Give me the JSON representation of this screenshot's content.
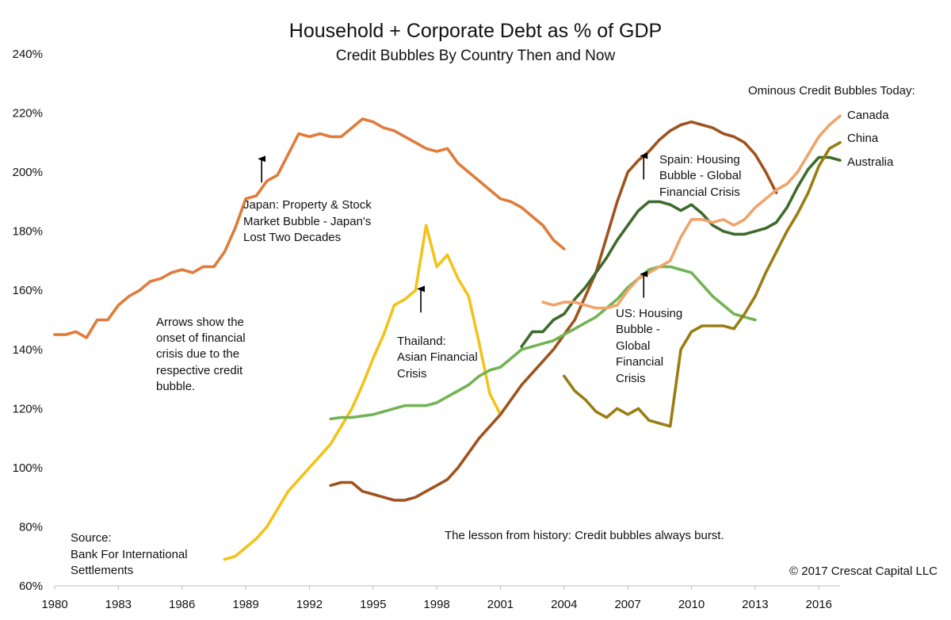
{
  "chart_data": {
    "type": "line",
    "title": "Household + Corporate Debt as % of GDP",
    "subtitle": "Credit Bubbles By Country Then and Now",
    "xlabel": "",
    "ylabel": "",
    "xlim": [
      1980,
      2017
    ],
    "ylim": [
      60,
      240
    ],
    "x_ticks": [
      "1980",
      "1983",
      "1986",
      "1989",
      "1992",
      "1995",
      "1998",
      "2001",
      "2004",
      "2007",
      "2010",
      "2013",
      "2016"
    ],
    "y_ticks": [
      "60%",
      "80%",
      "100%",
      "120%",
      "140%",
      "160%",
      "180%",
      "200%",
      "220%",
      "240%"
    ],
    "x_tick_values": [
      1980,
      1983,
      1986,
      1989,
      1992,
      1995,
      1998,
      2001,
      2004,
      2007,
      2010,
      2013,
      2016
    ],
    "y_tick_values": [
      60,
      80,
      100,
      120,
      140,
      160,
      180,
      200,
      220,
      240
    ],
    "grid": false,
    "series": [
      {
        "name": "Japan",
        "color": "#e07b39",
        "x": [
          1980,
          1980.5,
          1981,
          1981.5,
          1982,
          1982.5,
          1983,
          1983.5,
          1984,
          1984.5,
          1985,
          1985.5,
          1986,
          1986.5,
          1987,
          1987.5,
          1988,
          1988.5,
          1989,
          1989.5,
          1990,
          1990.5,
          1991,
          1991.5,
          1992,
          1992.5,
          1993,
          1993.5,
          1994,
          1994.5,
          1995,
          1995.5,
          1996,
          1996.5,
          1997,
          1997.5,
          1998,
          1998.5,
          1999,
          1999.5,
          2000,
          2000.5,
          2001,
          2001.5,
          2002,
          2002.5,
          2003,
          2003.5,
          2004
        ],
        "values": [
          145,
          145,
          146,
          144,
          150,
          150,
          155,
          158,
          160,
          163,
          164,
          166,
          167,
          166,
          168,
          168,
          173,
          181,
          191,
          192,
          197,
          199,
          206,
          213,
          212,
          213,
          212,
          212,
          215,
          218,
          217,
          215,
          214,
          212,
          210,
          208,
          207,
          208,
          203,
          200,
          197,
          194,
          191,
          190,
          188,
          185,
          182,
          177,
          174
        ]
      },
      {
        "name": "Thailand",
        "color": "#f2c318",
        "x": [
          1988,
          1988.5,
          1989,
          1989.5,
          1990,
          1990.5,
          1991,
          1991.5,
          1992,
          1992.5,
          1993,
          1993.5,
          1994,
          1994.5,
          1995,
          1995.5,
          1996,
          1996.5,
          1997,
          1997.5,
          1998,
          1998.5,
          1999,
          1999.5,
          2000,
          2000.5,
          2001
        ],
        "values": [
          69,
          70,
          73,
          76,
          80,
          86,
          92,
          96,
          100,
          104,
          108,
          114,
          120,
          128,
          137,
          145,
          155,
          157,
          160,
          182,
          168,
          172,
          164,
          158,
          142,
          125,
          118
        ]
      },
      {
        "name": "Spain",
        "color": "#a0521d",
        "x": [
          1993,
          1993.5,
          1994,
          1994.5,
          1995,
          1995.5,
          1996,
          1996.5,
          1997,
          1997.5,
          1998,
          1998.5,
          1999,
          1999.5,
          2000,
          2000.5,
          2001,
          2001.5,
          2002,
          2002.5,
          2003,
          2003.5,
          2004,
          2004.5,
          2005,
          2005.5,
          2006,
          2006.5,
          2007,
          2007.5,
          2008,
          2008.5,
          2009,
          2009.5,
          2010,
          2010.5,
          2011,
          2011.5,
          2012,
          2012.5,
          2013,
          2013.5,
          2014
        ],
        "values": [
          94,
          95,
          95,
          92,
          91,
          90,
          89,
          89,
          90,
          92,
          94,
          96,
          100,
          105,
          110,
          114,
          118,
          123,
          128,
          132,
          136,
          140,
          145,
          150,
          158,
          166,
          178,
          190,
          200,
          204,
          207,
          211,
          214,
          216,
          217,
          216,
          215,
          213,
          212,
          210,
          206,
          200,
          193
        ]
      },
      {
        "name": "US",
        "color": "#72b354",
        "x": [
          1993,
          1993.5,
          1994,
          1994.5,
          1995,
          1995.5,
          1996,
          1996.5,
          1997,
          1997.5,
          1998,
          1998.5,
          1999,
          1999.5,
          2000,
          2000.5,
          2001,
          2001.5,
          2002,
          2002.5,
          2003,
          2003.5,
          2004,
          2004.5,
          2005,
          2005.5,
          2006,
          2006.5,
          2007,
          2007.5,
          2008,
          2008.5,
          2009,
          2009.5,
          2010,
          2010.5,
          2011,
          2011.5,
          2012,
          2012.5,
          2013
        ],
        "values": [
          116.5,
          117,
          117,
          117.5,
          118,
          119,
          120,
          121,
          121,
          121,
          122,
          124,
          126,
          128,
          131,
          133,
          134,
          137,
          140,
          141,
          142,
          143,
          145,
          147,
          149,
          151,
          154,
          157,
          161,
          164,
          167,
          168,
          168,
          167,
          166,
          162,
          158,
          155,
          152,
          151,
          150
        ]
      },
      {
        "name": "China",
        "color": "#3e6b2d",
        "x": [
          2002,
          2002.5,
          2003,
          2003.5,
          2004,
          2004.5,
          2005,
          2005.5,
          2006,
          2006.5,
          2007,
          2007.5,
          2008,
          2008.5,
          2009,
          2009.5,
          2010,
          2010.5,
          2011,
          2011.5,
          2012,
          2012.5,
          2013,
          2013.5,
          2014,
          2014.5,
          2015,
          2015.5,
          2016,
          2016.5,
          2017
        ],
        "values": [
          141,
          146,
          146,
          150,
          152,
          157,
          161,
          166,
          171,
          177,
          182,
          187,
          190,
          190,
          189,
          187,
          189,
          186,
          182,
          180,
          179,
          179,
          180,
          181,
          183,
          188,
          195,
          201,
          205,
          205,
          204
        ]
      },
      {
        "name": "Canada",
        "color": "#f0a46b",
        "x": [
          2003,
          2003.5,
          2004,
          2004.5,
          2005,
          2005.5,
          2006,
          2006.5,
          2007,
          2007.5,
          2008,
          2008.5,
          2009,
          2009.5,
          2010,
          2010.5,
          2011,
          2011.5,
          2012,
          2012.5,
          2013,
          2013.5,
          2014,
          2014.5,
          2015,
          2015.5,
          2016,
          2016.5,
          2017
        ],
        "values": [
          156,
          155,
          156,
          156,
          155,
          154,
          154,
          155,
          160,
          164,
          166,
          168,
          170,
          178,
          184,
          184,
          183,
          184,
          182,
          184,
          188,
          191,
          194,
          196,
          200,
          206,
          212,
          216,
          219
        ]
      },
      {
        "name": "Australia",
        "color": "#9a7d12",
        "x": [
          2004,
          2004.5,
          2005,
          2005.5,
          2006,
          2006.5,
          2007,
          2007.5,
          2008,
          2008.5,
          2009,
          2009.5,
          2010,
          2010.5,
          2011,
          2011.5,
          2012,
          2012.5,
          2013,
          2013.5,
          2014,
          2014.5,
          2015,
          2015.5,
          2016,
          2016.5,
          2017
        ],
        "values": [
          131,
          126,
          123,
          119,
          117,
          120,
          118,
          120,
          116,
          115,
          114,
          140,
          146,
          148,
          148,
          148,
          147,
          152,
          158,
          166,
          173,
          180,
          186,
          193,
          202,
          208,
          210
        ]
      }
    ],
    "annotations": {
      "japan": [
        "Japan: Property & Stock",
        "Market Bubble - Japan's",
        "Lost Two Decades"
      ],
      "thailand": [
        "Thailand:",
        "Asian Financial",
        "Crisis"
      ],
      "spain": [
        "Spain: Housing",
        "Bubble - Global",
        "Financial Crisis"
      ],
      "us": [
        "US: Housing",
        "Bubble -",
        "Global",
        "Financial",
        "Crisis"
      ],
      "arrows_note": [
        "Arrows show the",
        "onset of financial",
        "crisis due to the",
        "respective credit",
        "bubble."
      ],
      "source": [
        "Source:",
        "Bank For International",
        "Settlements"
      ],
      "lesson": "The lesson from history: Credit bubbles always burst.",
      "copyright": "© 2017 Crescat Capital LLC",
      "today_header": "Ominous Credit Bubbles Today:"
    },
    "crisis_arrows": [
      {
        "name": "japan",
        "x": 1989.75,
        "from": 196.5,
        "to": 204.5
      },
      {
        "name": "thailand",
        "x": 1997.25,
        "from": 152.5,
        "to": 160.5
      },
      {
        "name": "spain",
        "x": 2007.75,
        "from": 197.5,
        "to": 205.5
      },
      {
        "name": "us",
        "x": 2007.75,
        "from": 157.5,
        "to": 165.5
      }
    ],
    "legend": [
      "Canada",
      "China",
      "Australia"
    ],
    "legend_position": "top-right"
  }
}
